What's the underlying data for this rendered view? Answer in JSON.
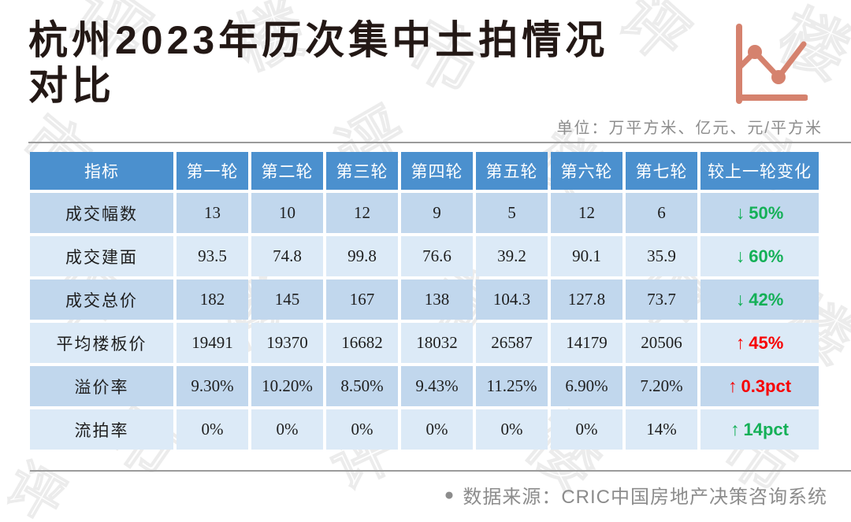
{
  "page": {
    "title": {
      "full": "杭州2023年历次集中土拍情况对比",
      "line1": "杭州2023年历次集中土拍情况",
      "line2": "对比"
    },
    "unit_note": "单位：万平方米、亿元、元/平方米",
    "source_bullet": "●",
    "source_note": "数据来源：CRIC中国房地产决策咨询系统"
  },
  "watermark": {
    "text": "评楼市"
  },
  "colors": {
    "header_blue": "#4b90ce",
    "row_dark": "#c1d7ed",
    "row_light": "#dceaf7",
    "green": "#14b057",
    "red": "#f70000",
    "accent_salmon": "#d5826e",
    "divider_gray": "#9b9b9b",
    "note_gray": "#8c8c8c",
    "title_black": "#231815"
  },
  "chart_data": {
    "type": "table",
    "title": "杭州2023年历次集中土拍情况对比",
    "unit": "单位：万平方米、亿元、元/平方米",
    "columns": [
      "指标",
      "第一轮",
      "第二轮",
      "第三轮",
      "第四轮",
      "第五轮",
      "第六轮",
      "第七轮",
      "较上一轮变化"
    ],
    "rows": [
      {
        "label": "成交幅数",
        "values": [
          "13",
          "10",
          "12",
          "9",
          "5",
          "12",
          "6"
        ],
        "change": {
          "arrow": "↓",
          "text": "50%",
          "direction": "down",
          "color": "green"
        }
      },
      {
        "label": "成交建面",
        "values": [
          "93.5",
          "74.8",
          "99.8",
          "76.6",
          "39.2",
          "90.1",
          "35.9"
        ],
        "change": {
          "arrow": "↓",
          "text": "60%",
          "direction": "down",
          "color": "green"
        }
      },
      {
        "label": "成交总价",
        "values": [
          "182",
          "145",
          "167",
          "138",
          "104.3",
          "127.8",
          "73.7"
        ],
        "change": {
          "arrow": "↓",
          "text": "42%",
          "direction": "down",
          "color": "green"
        }
      },
      {
        "label": "平均楼板价",
        "values": [
          "19491",
          "19370",
          "16682",
          "18032",
          "26587",
          "14179",
          "20506"
        ],
        "change": {
          "arrow": "↑",
          "text": "45%",
          "direction": "up",
          "color": "red"
        }
      },
      {
        "label": "溢价率",
        "values": [
          "9.30%",
          "10.20%",
          "8.50%",
          "9.43%",
          "11.25%",
          "6.90%",
          "7.20%"
        ],
        "change": {
          "arrow": "↑",
          "text": "0.3pct",
          "direction": "up",
          "color": "red"
        }
      },
      {
        "label": "流拍率",
        "values": [
          "0%",
          "0%",
          "0%",
          "0%",
          "0%",
          "0%",
          "14%"
        ],
        "change": {
          "arrow": "↑",
          "text": "14pct",
          "direction": "up",
          "color": "green"
        }
      }
    ],
    "source": "数据来源：CRIC中国房地产决策咨询系统",
    "legend_position": "none",
    "grid": "white-gaps-between-cells"
  }
}
